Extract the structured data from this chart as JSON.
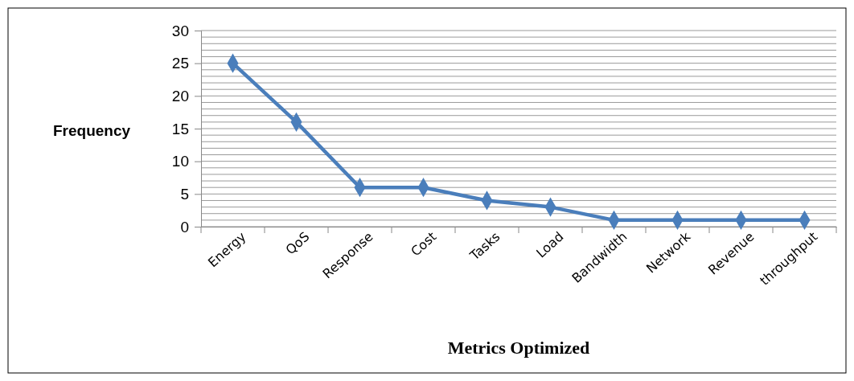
{
  "chart_data": {
    "type": "line",
    "xlabel": "Metrics Optimized",
    "ylabel": "Frequency",
    "categories": [
      "Energy",
      "QoS",
      "Response",
      "Cost",
      "Tasks",
      "Load",
      "Bandwidth",
      "Network",
      "Revenue",
      "throughput"
    ],
    "series": [
      {
        "color": "#4a7ebb",
        "values": [
          25,
          16,
          6,
          6,
          4,
          3,
          1,
          1,
          1,
          1
        ]
      }
    ],
    "ylim": [
      0,
      30
    ],
    "yticks": [
      0,
      {
        "value": 1,
        "label": null
      },
      {
        "value": 2,
        "label": null
      },
      {
        "value": 3,
        "label": null
      },
      {
        "value": 4,
        "label": null
      },
      5,
      {
        "value": 6,
        "label": null
      },
      {
        "value": 7,
        "label": null
      },
      {
        "value": 8,
        "label": null
      },
      {
        "value": 9,
        "label": null
      },
      10,
      {
        "value": 11,
        "label": null
      },
      {
        "value": 12,
        "label": null
      },
      {
        "value": 13,
        "label": null
      },
      {
        "value": 14,
        "label": null
      },
      15,
      {
        "value": 16,
        "label": null
      },
      {
        "value": 17,
        "label": null
      },
      {
        "value": 18,
        "label": null
      },
      {
        "value": 19,
        "label": null
      },
      20,
      {
        "value": 21,
        "label": null
      },
      {
        "value": 22,
        "label": null
      },
      {
        "value": 23,
        "label": null
      },
      {
        "value": 24,
        "label": null
      },
      25,
      {
        "value": 26,
        "label": null
      },
      {
        "value": 27,
        "label": null
      },
      {
        "value": 28,
        "label": null
      },
      {
        "value": 29,
        "label": null
      },
      30
    ],
    "grid": "y",
    "marker": "diamond",
    "line_style": "solid"
  }
}
